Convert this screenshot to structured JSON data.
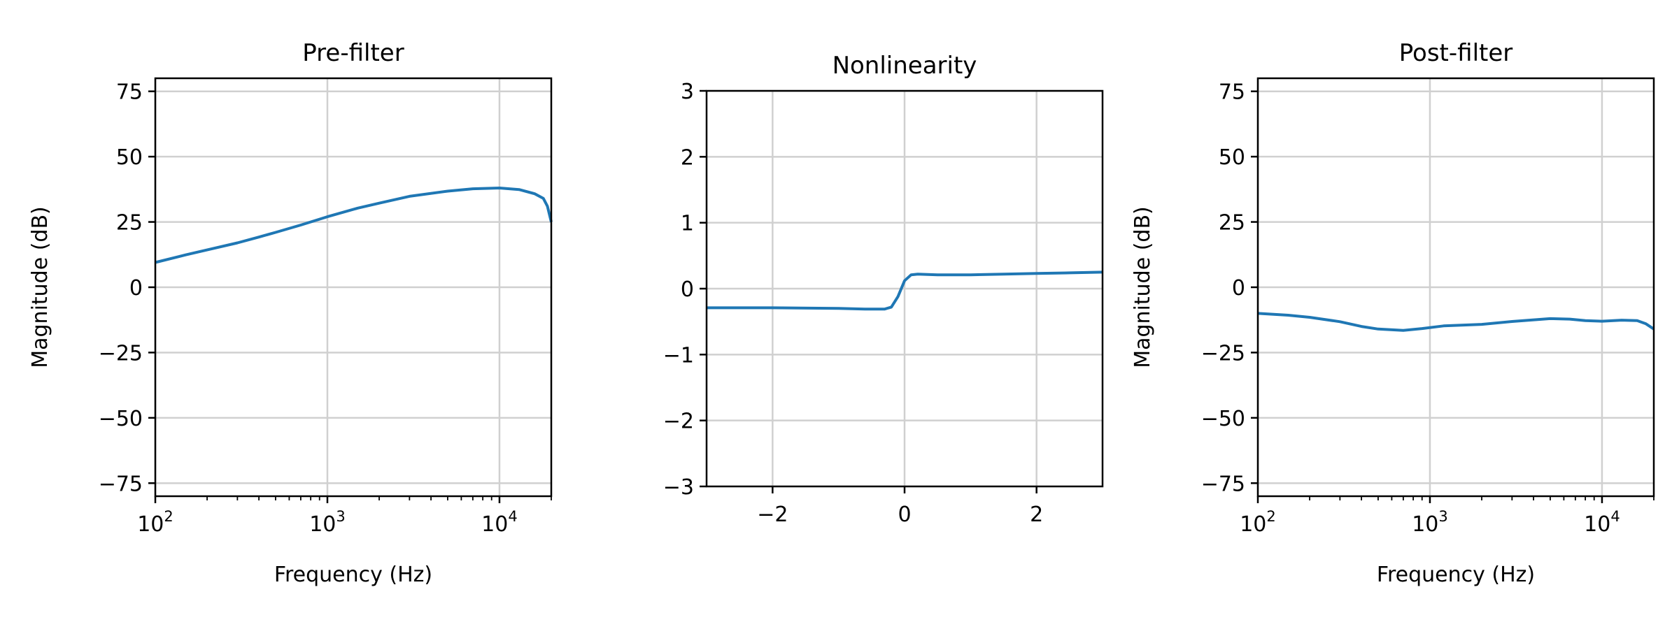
{
  "chart_data": [
    {
      "type": "line",
      "title": "Pre-filter",
      "xlabel": "Frequency (Hz)",
      "ylabel": "Magnitude (dB)",
      "xscale": "log",
      "xlim": [
        100,
        20000
      ],
      "ylim": [
        -80,
        80
      ],
      "grid": true,
      "xticks": [
        {
          "value": 100,
          "base": "10",
          "exp": "2"
        },
        {
          "value": 1000,
          "base": "10",
          "exp": "3"
        },
        {
          "value": 10000,
          "base": "10",
          "exp": "4"
        }
      ],
      "yticks": [
        {
          "value": 75,
          "label": "75"
        },
        {
          "value": 50,
          "label": "50"
        },
        {
          "value": 25,
          "label": "25"
        },
        {
          "value": 0,
          "label": "0"
        },
        {
          "value": -25,
          "label": "−25"
        },
        {
          "value": -50,
          "label": "−50"
        },
        {
          "value": -75,
          "label": "−75"
        }
      ],
      "series": [
        {
          "color": "#1f77b4",
          "x": [
            100,
            150,
            200,
            300,
            400,
            500,
            700,
            1000,
            1500,
            2000,
            3000,
            5000,
            7000,
            10000,
            13000,
            16000,
            18000,
            19000,
            20000
          ],
          "y": [
            9.5,
            12.4,
            14.3,
            17,
            19.2,
            21,
            23.8,
            27,
            30.3,
            32.2,
            34.8,
            36.8,
            37.7,
            38,
            37.4,
            35.8,
            34,
            31,
            25
          ]
        }
      ]
    },
    {
      "type": "line",
      "title": "Nonlinearity",
      "xlabel": "",
      "ylabel": "",
      "xscale": "linear",
      "xlim": [
        -3,
        3
      ],
      "ylim": [
        -3,
        3
      ],
      "grid": true,
      "xticks": [
        {
          "value": -2,
          "label": "−2"
        },
        {
          "value": 0,
          "label": "0"
        },
        {
          "value": 2,
          "label": "2"
        }
      ],
      "yticks": [
        {
          "value": 3,
          "label": "3"
        },
        {
          "value": 2,
          "label": "2"
        },
        {
          "value": 1,
          "label": "1"
        },
        {
          "value": 0,
          "label": "0"
        },
        {
          "value": -1,
          "label": "−1"
        },
        {
          "value": -2,
          "label": "−2"
        },
        {
          "value": -3,
          "label": "−3"
        }
      ],
      "series": [
        {
          "color": "#1f77b4",
          "x": [
            -3,
            -2,
            -1,
            -0.6,
            -0.3,
            -0.2,
            -0.1,
            0,
            0.1,
            0.2,
            0.5,
            1,
            1.5,
            2,
            2.5,
            3
          ],
          "y": [
            -0.29,
            -0.29,
            -0.3,
            -0.31,
            -0.31,
            -0.28,
            -0.12,
            0.12,
            0.21,
            0.22,
            0.21,
            0.21,
            0.22,
            0.23,
            0.24,
            0.25
          ]
        }
      ]
    },
    {
      "type": "line",
      "title": "Post-filter",
      "xlabel": "Frequency (Hz)",
      "ylabel": "Magnitude (dB)",
      "xscale": "log",
      "xlim": [
        100,
        20000
      ],
      "ylim": [
        -80,
        80
      ],
      "grid": true,
      "xticks": [
        {
          "value": 100,
          "base": "10",
          "exp": "2"
        },
        {
          "value": 1000,
          "base": "10",
          "exp": "3"
        },
        {
          "value": 10000,
          "base": "10",
          "exp": "4"
        }
      ],
      "yticks": [
        {
          "value": 75,
          "label": "75"
        },
        {
          "value": 50,
          "label": "50"
        },
        {
          "value": 25,
          "label": "25"
        },
        {
          "value": 0,
          "label": "0"
        },
        {
          "value": -25,
          "label": "−25"
        },
        {
          "value": -50,
          "label": "−50"
        },
        {
          "value": -75,
          "label": "−75"
        }
      ],
      "series": [
        {
          "color": "#1f77b4",
          "x": [
            100,
            150,
            200,
            300,
            400,
            500,
            700,
            900,
            1200,
            2000,
            3000,
            5000,
            6500,
            8000,
            10000,
            13000,
            16000,
            18000,
            20000
          ],
          "y": [
            -10,
            -10.7,
            -11.5,
            -13.2,
            -15,
            -16,
            -16.5,
            -15.8,
            -14.8,
            -14.2,
            -13.1,
            -12,
            -12.2,
            -12.8,
            -13,
            -12.6,
            -12.8,
            -14,
            -16
          ]
        }
      ]
    }
  ]
}
